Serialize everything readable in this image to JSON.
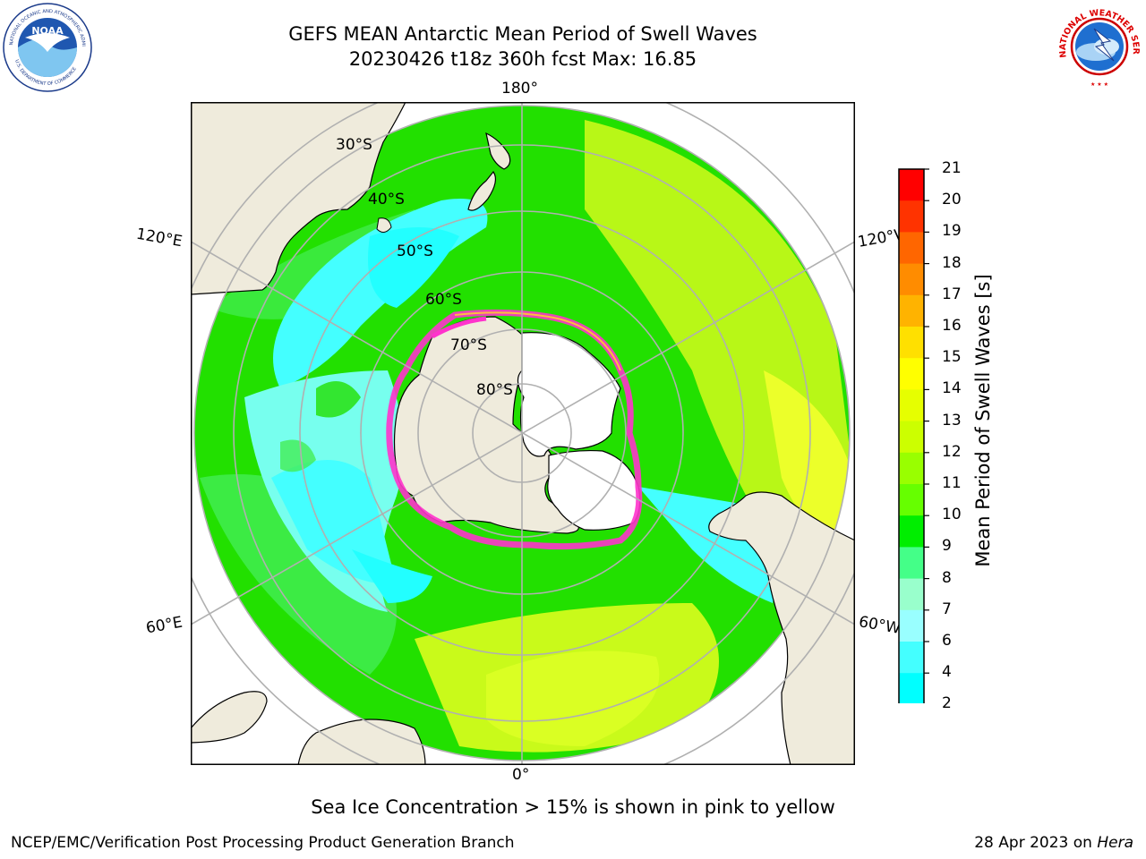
{
  "header": {
    "title_line1": "GEFS MEAN Antarctic Mean Period of Swell Waves",
    "title_line2": "20230426 t18z 360h fcst   Max: 16.85"
  },
  "logos": {
    "left": {
      "name": "NOAA",
      "arc_text": "NATIONAL OCEANIC AND ATMOSPHERIC ADMINISTRATION",
      "bottom_text": "U.S. DEPARTMENT OF COMMERCE"
    },
    "right": {
      "arc_text": "NATIONAL WEATHER SERVICE"
    }
  },
  "map": {
    "longitude_labels": {
      "top": "180°",
      "bottom": "0°",
      "left_upper": "120°E",
      "left_lower": "60°E",
      "right_upper": "120°W",
      "right_lower": "60°W"
    },
    "latitude_labels": [
      "30°S",
      "40°S",
      "50°S",
      "60°S",
      "70°S",
      "80°S"
    ],
    "colors": {
      "land": "#efebdc",
      "ice_shelf": "#ffffff",
      "grid": "#b0b0b0",
      "sea_ice_edge": "#ff33cc"
    }
  },
  "colorbar": {
    "label": "Mean Period of Swell Waves [s]",
    "ticks": [
      "21",
      "20",
      "19",
      "18",
      "17",
      "16",
      "15",
      "14",
      "13",
      "12",
      "11",
      "10",
      "9",
      "8",
      "7",
      "6",
      "4",
      "2"
    ],
    "colors_top_to_bottom": [
      "#ff0000",
      "#ff3300",
      "#ff6600",
      "#ff8c00",
      "#ffb300",
      "#ffe000",
      "#ffff00",
      "#e6ff00",
      "#ccff00",
      "#99ff00",
      "#66ff00",
      "#00ee00",
      "#44ff88",
      "#99ffcc",
      "#99ffff",
      "#44ffff",
      "#00ffff",
      "#00ccff",
      "#0077ff"
    ],
    "extend_color": "#0000ff"
  },
  "note": "Sea Ice Concentration > 15% is shown in pink to yellow",
  "footer": {
    "left": "NCEP/EMC/Verification Post Processing Product Generation Branch",
    "right_prefix": "28 Apr 2023 on ",
    "right_machine": "Hera"
  }
}
